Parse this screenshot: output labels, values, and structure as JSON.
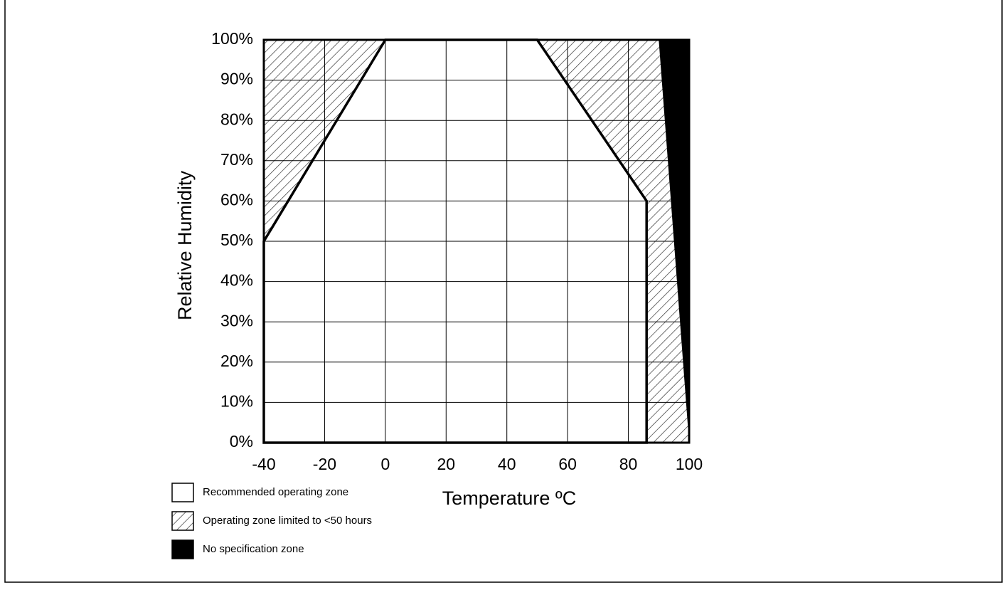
{
  "chart_data": {
    "type": "zone",
    "xlabel": "Temperature ºC",
    "ylabel": "Relative Humidity",
    "xlim": [
      -40,
      100
    ],
    "xticks": [
      -40,
      -20,
      0,
      20,
      40,
      60,
      80,
      100
    ],
    "ylim": [
      0,
      100
    ],
    "yticks": [
      {
        "value": 0,
        "label": "0%"
      },
      {
        "value": 10,
        "label": "10%"
      },
      {
        "value": 20,
        "label": "20%"
      },
      {
        "value": 30,
        "label": "30%"
      },
      {
        "value": 40,
        "label": "40%"
      },
      {
        "value": 50,
        "label": "50%"
      },
      {
        "value": 60,
        "label": "60%"
      },
      {
        "value": 70,
        "label": "70%"
      },
      {
        "value": 80,
        "label": "80%"
      },
      {
        "value": 90,
        "label": "90%"
      },
      {
        "value": 100,
        "label": "100%"
      }
    ],
    "grid": true,
    "zones": [
      {
        "name": "Recommended operating zone",
        "fill": "white",
        "polygons": [
          {
            "x": [
              -40,
              -40,
              0,
              50,
              86,
              86
            ],
            "y": [
              0,
              50,
              100,
              100,
              60,
              0
            ]
          }
        ]
      },
      {
        "name": "Operating zone limited to <50 hours",
        "fill": "hatch",
        "polygons": [
          {
            "x": [
              -40,
              0,
              -40
            ],
            "y": [
              50,
              100,
              100
            ]
          },
          {
            "x": [
              50,
              90,
              100,
              86,
              86
            ],
            "y": [
              100,
              100,
              0,
              0,
              60
            ]
          }
        ]
      },
      {
        "name": "No specification zone",
        "fill": "black",
        "polygons": [
          {
            "x": [
              90,
              100,
              100
            ],
            "y": [
              100,
              100,
              0
            ]
          }
        ]
      }
    ]
  }
}
